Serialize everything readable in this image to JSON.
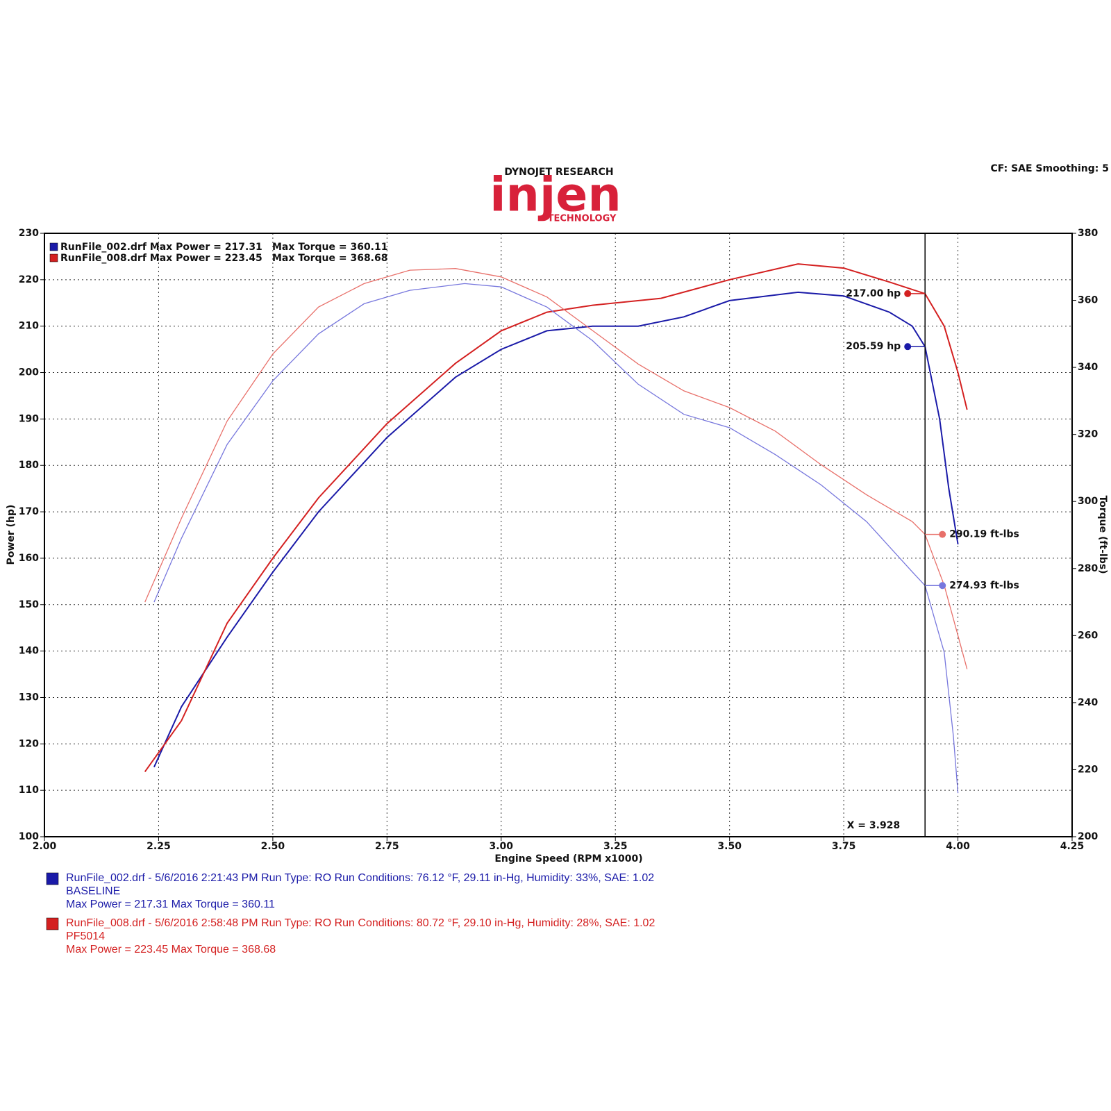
{
  "chart_data": {
    "type": "line",
    "header": "DYNOJET RESEARCH",
    "logo": "injen",
    "logo_sub": "TECHNOLOGY",
    "settings_text": "CF: SAE  Smoothing: 5",
    "x_label": "Engine Speed (RPM x1000)",
    "y_label": "Power (hp)",
    "y2_label": "Torque (ft-lbs)",
    "xlim": [
      2.0,
      4.25
    ],
    "xticks": [
      {
        "value": 2.0,
        "label": "2.00"
      },
      {
        "value": 2.25,
        "label": "2.25"
      },
      {
        "value": 2.5,
        "label": "2.50"
      },
      {
        "value": 2.75,
        "label": "2.75"
      },
      {
        "value": 3.0,
        "label": "3.00"
      },
      {
        "value": 3.25,
        "label": "3.25"
      },
      {
        "value": 3.5,
        "label": "3.50"
      },
      {
        "value": 3.75,
        "label": "3.75"
      },
      {
        "value": 4.0,
        "label": "4.00"
      },
      {
        "value": 4.25,
        "label": "4.25"
      }
    ],
    "ylim": [
      100,
      230
    ],
    "yticks": [
      100,
      110,
      120,
      130,
      140,
      150,
      160,
      170,
      180,
      190,
      200,
      210,
      220,
      230
    ],
    "y2lim": [
      200,
      380
    ],
    "y2ticks": [
      200,
      220,
      240,
      260,
      280,
      300,
      320,
      340,
      360,
      380
    ],
    "grid": true,
    "cursor": {
      "value": 3.928,
      "label": "X = 3.928"
    },
    "legend": [
      {
        "color": "#1a1aa8",
        "power": "RunFile_002.drf Max Power = 217.31",
        "torque": "Max Torque = 360.11"
      },
      {
        "color": "#d42020",
        "power": "RunFile_008.drf Max Power = 223.45",
        "torque": "Max Torque = 368.68"
      }
    ],
    "series": [
      {
        "color": "#1a1aa8",
        "axis": "y",
        "width": 2,
        "x": [
          2.24,
          2.3,
          2.4,
          2.5,
          2.6,
          2.75,
          2.9,
          3.0,
          3.1,
          3.2,
          3.3,
          3.4,
          3.5,
          3.65,
          3.75,
          3.85,
          3.9,
          3.928,
          3.96,
          3.98,
          4.0
        ],
        "values": [
          115,
          128,
          143,
          157,
          170,
          186,
          199,
          205,
          209,
          210,
          210,
          212,
          215.5,
          217.3,
          216.5,
          213,
          210,
          205.59,
          190,
          175,
          163
        ],
        "cursor_value": 205.59,
        "cursor_label": "205.59 hp"
      },
      {
        "color": "#d42020",
        "axis": "y",
        "width": 2,
        "x": [
          2.22,
          2.3,
          2.4,
          2.5,
          2.6,
          2.75,
          2.9,
          3.0,
          3.1,
          3.2,
          3.35,
          3.5,
          3.65,
          3.75,
          3.85,
          3.928,
          3.97,
          4.0,
          4.02
        ],
        "values": [
          114,
          125,
          146,
          160,
          173,
          189,
          202,
          209,
          213,
          214.5,
          216,
          220,
          223.4,
          222.5,
          219.5,
          217,
          210,
          200,
          192
        ],
        "cursor_value": 217.0,
        "cursor_label": "217.00 hp"
      },
      {
        "color": "#7777dd",
        "axis": "y2",
        "width": 1.3,
        "x": [
          2.24,
          2.3,
          2.4,
          2.5,
          2.6,
          2.7,
          2.8,
          2.92,
          3.0,
          3.1,
          3.2,
          3.3,
          3.4,
          3.5,
          3.6,
          3.7,
          3.8,
          3.9,
          3.928,
          3.97,
          3.99,
          4.0
        ],
        "values": [
          270,
          289,
          317,
          336,
          350,
          359,
          363,
          365,
          364,
          358,
          348,
          335,
          326,
          322,
          314,
          305,
          294,
          279,
          274.93,
          255,
          230,
          213
        ],
        "cursor_value": 274.93,
        "cursor_label": "274.93 ft-lbs"
      },
      {
        "color": "#e8706a",
        "axis": "y2",
        "width": 1.3,
        "x": [
          2.22,
          2.3,
          2.4,
          2.5,
          2.6,
          2.7,
          2.8,
          2.9,
          3.0,
          3.1,
          3.2,
          3.3,
          3.4,
          3.5,
          3.6,
          3.7,
          3.8,
          3.9,
          3.928,
          3.97,
          4.0,
          4.02
        ],
        "values": [
          270,
          295,
          324,
          344,
          358,
          365,
          369,
          369.5,
          367,
          361,
          351,
          341,
          333,
          328,
          321,
          311,
          302,
          294,
          290.19,
          275,
          260,
          250
        ],
        "cursor_value": 290.19,
        "cursor_label": "290.19 ft-lbs"
      }
    ],
    "run_notes": [
      {
        "color": "#1a1aa8",
        "lines": [
          "RunFile_002.drf - 5/6/2016 2:21:43 PM  Run Type: RO  Run Conditions: 76.12 °F, 29.11 in-Hg,  Humidity:  33%, SAE: 1.02",
          "BASELINE",
          "Max Power = 217.31  Max Torque = 360.11"
        ]
      },
      {
        "color": "#d42020",
        "lines": [
          "RunFile_008.drf - 5/6/2016 2:58:48 PM  Run Type: RO  Run Conditions: 80.72 °F, 29.10 in-Hg,  Humidity:  28%, SAE: 1.02",
          "PF5014",
          "Max Power = 223.45  Max Torque = 368.68"
        ]
      }
    ]
  }
}
